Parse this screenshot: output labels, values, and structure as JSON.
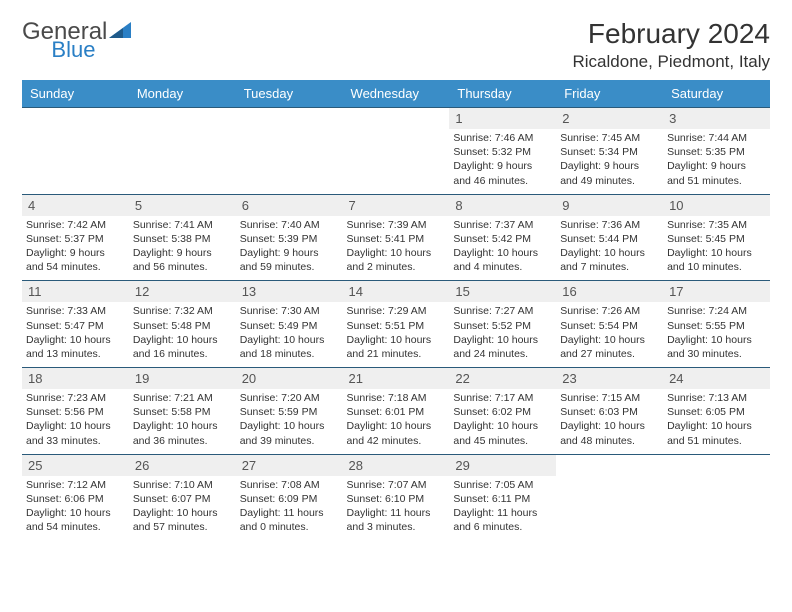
{
  "logo": {
    "t1": "General",
    "t2": "Blue",
    "triangle_color": "#2a7fc5"
  },
  "title": "February 2024",
  "location": "Ricaldone, Piedmont, Italy",
  "colors": {
    "header_bg": "#3a8dc7",
    "header_fg": "#ffffff",
    "daynum_bg": "#efefef",
    "rule": "#2a5a7a",
    "text": "#333333"
  },
  "weekdays": [
    "Sunday",
    "Monday",
    "Tuesday",
    "Wednesday",
    "Thursday",
    "Friday",
    "Saturday"
  ],
  "weeks": [
    [
      null,
      null,
      null,
      null,
      {
        "n": "1",
        "sr": "7:46 AM",
        "ss": "5:32 PM",
        "dl": "9 hours and 46 minutes."
      },
      {
        "n": "2",
        "sr": "7:45 AM",
        "ss": "5:34 PM",
        "dl": "9 hours and 49 minutes."
      },
      {
        "n": "3",
        "sr": "7:44 AM",
        "ss": "5:35 PM",
        "dl": "9 hours and 51 minutes."
      }
    ],
    [
      {
        "n": "4",
        "sr": "7:42 AM",
        "ss": "5:37 PM",
        "dl": "9 hours and 54 minutes."
      },
      {
        "n": "5",
        "sr": "7:41 AM",
        "ss": "5:38 PM",
        "dl": "9 hours and 56 minutes."
      },
      {
        "n": "6",
        "sr": "7:40 AM",
        "ss": "5:39 PM",
        "dl": "9 hours and 59 minutes."
      },
      {
        "n": "7",
        "sr": "7:39 AM",
        "ss": "5:41 PM",
        "dl": "10 hours and 2 minutes."
      },
      {
        "n": "8",
        "sr": "7:37 AM",
        "ss": "5:42 PM",
        "dl": "10 hours and 4 minutes."
      },
      {
        "n": "9",
        "sr": "7:36 AM",
        "ss": "5:44 PM",
        "dl": "10 hours and 7 minutes."
      },
      {
        "n": "10",
        "sr": "7:35 AM",
        "ss": "5:45 PM",
        "dl": "10 hours and 10 minutes."
      }
    ],
    [
      {
        "n": "11",
        "sr": "7:33 AM",
        "ss": "5:47 PM",
        "dl": "10 hours and 13 minutes."
      },
      {
        "n": "12",
        "sr": "7:32 AM",
        "ss": "5:48 PM",
        "dl": "10 hours and 16 minutes."
      },
      {
        "n": "13",
        "sr": "7:30 AM",
        "ss": "5:49 PM",
        "dl": "10 hours and 18 minutes."
      },
      {
        "n": "14",
        "sr": "7:29 AM",
        "ss": "5:51 PM",
        "dl": "10 hours and 21 minutes."
      },
      {
        "n": "15",
        "sr": "7:27 AM",
        "ss": "5:52 PM",
        "dl": "10 hours and 24 minutes."
      },
      {
        "n": "16",
        "sr": "7:26 AM",
        "ss": "5:54 PM",
        "dl": "10 hours and 27 minutes."
      },
      {
        "n": "17",
        "sr": "7:24 AM",
        "ss": "5:55 PM",
        "dl": "10 hours and 30 minutes."
      }
    ],
    [
      {
        "n": "18",
        "sr": "7:23 AM",
        "ss": "5:56 PM",
        "dl": "10 hours and 33 minutes."
      },
      {
        "n": "19",
        "sr": "7:21 AM",
        "ss": "5:58 PM",
        "dl": "10 hours and 36 minutes."
      },
      {
        "n": "20",
        "sr": "7:20 AM",
        "ss": "5:59 PM",
        "dl": "10 hours and 39 minutes."
      },
      {
        "n": "21",
        "sr": "7:18 AM",
        "ss": "6:01 PM",
        "dl": "10 hours and 42 minutes."
      },
      {
        "n": "22",
        "sr": "7:17 AM",
        "ss": "6:02 PM",
        "dl": "10 hours and 45 minutes."
      },
      {
        "n": "23",
        "sr": "7:15 AM",
        "ss": "6:03 PM",
        "dl": "10 hours and 48 minutes."
      },
      {
        "n": "24",
        "sr": "7:13 AM",
        "ss": "6:05 PM",
        "dl": "10 hours and 51 minutes."
      }
    ],
    [
      {
        "n": "25",
        "sr": "7:12 AM",
        "ss": "6:06 PM",
        "dl": "10 hours and 54 minutes."
      },
      {
        "n": "26",
        "sr": "7:10 AM",
        "ss": "6:07 PM",
        "dl": "10 hours and 57 minutes."
      },
      {
        "n": "27",
        "sr": "7:08 AM",
        "ss": "6:09 PM",
        "dl": "11 hours and 0 minutes."
      },
      {
        "n": "28",
        "sr": "7:07 AM",
        "ss": "6:10 PM",
        "dl": "11 hours and 3 minutes."
      },
      {
        "n": "29",
        "sr": "7:05 AM",
        "ss": "6:11 PM",
        "dl": "11 hours and 6 minutes."
      },
      null,
      null
    ]
  ]
}
